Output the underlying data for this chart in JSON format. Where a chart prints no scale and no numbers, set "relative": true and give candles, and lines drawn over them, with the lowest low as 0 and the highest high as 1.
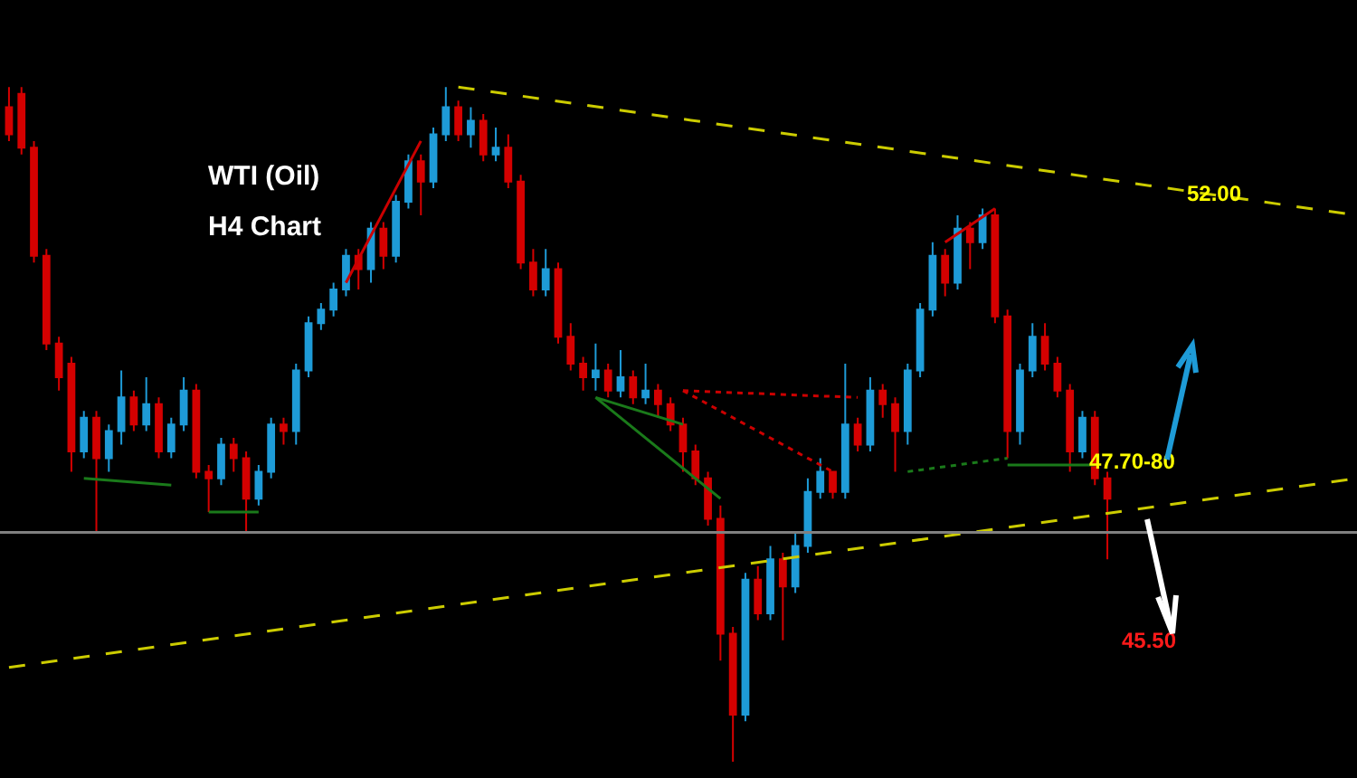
{
  "chart_data": {
    "type": "candlestick",
    "title": "WTI (Oil)",
    "subtitle": "H4 Chart",
    "relative": true,
    "categories": [
      null,
      null,
      null,
      null,
      null,
      null,
      null,
      null,
      null,
      null,
      null,
      null,
      null,
      null,
      null,
      null,
      null,
      null,
      null,
      null,
      null,
      null,
      null,
      null,
      null,
      null,
      null,
      null,
      null,
      null,
      null,
      null,
      null,
      null,
      null,
      null,
      null,
      null,
      null,
      null,
      null,
      null,
      null,
      null,
      null,
      null,
      null,
      null,
      null,
      null,
      null,
      null,
      null,
      null,
      null,
      null,
      null,
      null,
      null,
      null,
      null,
      null,
      null,
      null,
      null,
      null,
      null,
      null,
      null,
      null,
      null,
      null,
      null,
      null,
      null,
      null,
      null,
      null,
      null,
      null,
      null,
      null,
      null,
      null,
      null,
      null,
      null,
      null,
      null,
      null,
      null,
      null,
      null,
      null,
      null,
      null,
      null,
      null,
      null,
      null,
      null,
      null,
      null,
      null,
      null,
      null,
      null,
      null,
      null
    ],
    "ohlc": [
      [
        0.97,
        1.0,
        0.92,
        0.93
      ],
      [
        0.99,
        1.0,
        0.9,
        0.91
      ],
      [
        0.91,
        0.92,
        0.74,
        0.75
      ],
      [
        0.75,
        0.76,
        0.61,
        0.62
      ],
      [
        0.62,
        0.63,
        0.55,
        0.57
      ],
      [
        0.59,
        0.6,
        0.43,
        0.46
      ],
      [
        0.46,
        0.52,
        0.45,
        0.51
      ],
      [
        0.51,
        0.52,
        0.34,
        0.45
      ],
      [
        0.45,
        0.5,
        0.43,
        0.49
      ],
      [
        0.49,
        0.58,
        0.47,
        0.54
      ],
      [
        0.54,
        0.55,
        0.49,
        0.5
      ],
      [
        0.5,
        0.57,
        0.49,
        0.53
      ],
      [
        0.53,
        0.54,
        0.45,
        0.46
      ],
      [
        0.46,
        0.51,
        0.45,
        0.5
      ],
      [
        0.5,
        0.57,
        0.49,
        0.55
      ],
      [
        0.55,
        0.56,
        0.42,
        0.43
      ],
      [
        0.43,
        0.44,
        0.37,
        0.42
      ],
      [
        0.42,
        0.48,
        0.41,
        0.47
      ],
      [
        0.47,
        0.48,
        0.43,
        0.45
      ],
      [
        0.45,
        0.46,
        0.34,
        0.39
      ],
      [
        0.39,
        0.44,
        0.38,
        0.43
      ],
      [
        0.43,
        0.51,
        0.42,
        0.5
      ],
      [
        0.5,
        0.51,
        0.47,
        0.49
      ],
      [
        0.49,
        0.59,
        0.47,
        0.58
      ],
      [
        0.58,
        0.66,
        0.57,
        0.65
      ],
      [
        0.65,
        0.68,
        0.64,
        0.67
      ],
      [
        0.67,
        0.71,
        0.66,
        0.7
      ],
      [
        0.7,
        0.76,
        0.69,
        0.75
      ],
      [
        0.75,
        0.76,
        0.7,
        0.73
      ],
      [
        0.73,
        0.8,
        0.71,
        0.79
      ],
      [
        0.79,
        0.8,
        0.73,
        0.75
      ],
      [
        0.75,
        0.84,
        0.74,
        0.83
      ],
      [
        0.83,
        0.9,
        0.82,
        0.89
      ],
      [
        0.89,
        0.9,
        0.81,
        0.86
      ],
      [
        0.86,
        0.94,
        0.85,
        0.93
      ],
      [
        0.93,
        1.0,
        0.92,
        0.97
      ],
      [
        0.97,
        0.98,
        0.92,
        0.93
      ],
      [
        0.93,
        0.97,
        0.91,
        0.95
      ],
      [
        0.95,
        0.96,
        0.89,
        0.9
      ],
      [
        0.9,
        0.94,
        0.89,
        0.91
      ],
      [
        0.91,
        0.93,
        0.85,
        0.86
      ],
      [
        0.86,
        0.87,
        0.73,
        0.74
      ],
      [
        0.74,
        0.76,
        0.69,
        0.7
      ],
      [
        0.7,
        0.76,
        0.69,
        0.73
      ],
      [
        0.73,
        0.74,
        0.62,
        0.63
      ],
      [
        0.63,
        0.65,
        0.58,
        0.59
      ],
      [
        0.59,
        0.6,
        0.55,
        0.57
      ],
      [
        0.57,
        0.62,
        0.55,
        0.58
      ],
      [
        0.58,
        0.59,
        0.54,
        0.55
      ],
      [
        0.55,
        0.61,
        0.54,
        0.57
      ],
      [
        0.57,
        0.58,
        0.53,
        0.54
      ],
      [
        0.54,
        0.59,
        0.53,
        0.55
      ],
      [
        0.55,
        0.56,
        0.51,
        0.53
      ],
      [
        0.53,
        0.54,
        0.49,
        0.5
      ],
      [
        0.5,
        0.51,
        0.43,
        0.46
      ],
      [
        0.46,
        0.47,
        0.41,
        0.42
      ],
      [
        0.42,
        0.43,
        0.35,
        0.36
      ],
      [
        0.36,
        0.38,
        0.15,
        0.19
      ],
      [
        0.19,
        0.2,
        0.0,
        0.07
      ],
      [
        0.07,
        0.28,
        0.06,
        0.27
      ],
      [
        0.27,
        0.29,
        0.21,
        0.22
      ],
      [
        0.22,
        0.32,
        0.21,
        0.3
      ],
      [
        0.3,
        0.31,
        0.18,
        0.26
      ],
      [
        0.26,
        0.34,
        0.25,
        0.32
      ],
      [
        0.32,
        0.42,
        0.31,
        0.4
      ],
      [
        0.4,
        0.45,
        0.39,
        0.43
      ],
      [
        0.43,
        0.43,
        0.39,
        0.4
      ],
      [
        0.4,
        0.59,
        0.39,
        0.5
      ],
      [
        0.5,
        0.51,
        0.46,
        0.47
      ],
      [
        0.47,
        0.57,
        0.46,
        0.55
      ],
      [
        0.55,
        0.56,
        0.51,
        0.53
      ],
      [
        0.53,
        0.54,
        0.43,
        0.49
      ],
      [
        0.49,
        0.59,
        0.47,
        0.58
      ],
      [
        0.58,
        0.68,
        0.57,
        0.67
      ],
      [
        0.67,
        0.77,
        0.66,
        0.75
      ],
      [
        0.75,
        0.76,
        0.69,
        0.71
      ],
      [
        0.71,
        0.81,
        0.7,
        0.79
      ],
      [
        0.79,
        0.8,
        0.73,
        0.77
      ],
      [
        0.77,
        0.82,
        0.76,
        0.81
      ],
      [
        0.81,
        0.82,
        0.65,
        0.66
      ],
      [
        0.66,
        0.67,
        0.45,
        0.49
      ],
      [
        0.49,
        0.59,
        0.47,
        0.58
      ],
      [
        0.58,
        0.65,
        0.57,
        0.63
      ],
      [
        0.63,
        0.65,
        0.58,
        0.59
      ],
      [
        0.59,
        0.6,
        0.54,
        0.55
      ],
      [
        0.55,
        0.56,
        0.43,
        0.46
      ],
      [
        0.46,
        0.52,
        0.45,
        0.51
      ],
      [
        0.51,
        0.52,
        0.41,
        0.42
      ],
      [
        0.42,
        0.43,
        0.3,
        0.39
      ],
      null,
      null,
      null,
      null,
      null,
      null,
      null,
      null,
      null,
      null,
      null,
      null,
      null,
      null,
      null,
      null,
      null,
      null,
      null,
      null
    ],
    "colors": [
      "#d40000",
      "#d40000",
      "#d40000",
      "#d40000",
      "#d40000",
      "#d40000",
      "#1e9bd7",
      "#d40000",
      "#1e9bd7",
      "#1e9bd7",
      "#d40000",
      "#1e9bd7",
      "#d40000",
      "#1e9bd7",
      "#1e9bd7",
      "#d40000",
      "#d40000",
      "#1e9bd7",
      "#d40000",
      "#d40000",
      "#1e9bd7",
      "#1e9bd7",
      "#d40000",
      "#1e9bd7",
      "#1e9bd7",
      "#1e9bd7",
      "#1e9bd7",
      "#1e9bd7",
      "#d40000",
      "#1e9bd7",
      "#d40000",
      "#1e9bd7",
      "#1e9bd7",
      "#d40000",
      "#1e9bd7",
      "#1e9bd7",
      "#d40000",
      "#1e9bd7",
      "#d40000",
      "#1e9bd7",
      "#d40000",
      "#d40000",
      "#d40000",
      "#1e9bd7",
      "#d40000",
      "#d40000",
      "#d40000",
      "#1e9bd7",
      "#d40000",
      "#1e9bd7",
      "#d40000",
      "#1e9bd7",
      "#d40000",
      "#d40000",
      "#d40000",
      "#d40000",
      "#d40000",
      "#d40000",
      "#d40000",
      "#1e9bd7",
      "#d40000",
      "#1e9bd7",
      "#d40000",
      "#1e9bd7",
      "#1e9bd7",
      "#1e9bd7",
      "#d40000",
      "#1e9bd7",
      "#d40000",
      "#1e9bd7",
      "#d40000",
      "#d40000",
      "#1e9bd7",
      "#1e9bd7",
      "#1e9bd7",
      "#d40000",
      "#1e9bd7",
      "#d40000",
      "#1e9bd7",
      "#d40000",
      "#d40000",
      "#1e9bd7",
      "#1e9bd7",
      "#d40000",
      "#d40000",
      "#d40000",
      "#1e9bd7",
      "#d40000",
      "#d40000",
      null,
      null,
      null,
      null,
      null,
      null,
      null,
      null,
      null,
      null,
      null,
      null,
      null,
      null,
      null,
      null,
      null,
      null,
      null,
      null
    ],
    "series": [
      {
        "type": "line",
        "color": "#cccc00",
        "line_style": "dashed",
        "values": [
          null,
          null,
          null,
          null,
          null,
          null,
          null,
          null,
          null,
          null,
          null,
          null,
          null,
          null,
          null,
          null,
          null,
          null,
          null,
          null,
          null,
          null,
          null,
          null,
          null,
          null,
          null,
          null,
          null,
          null,
          null,
          null,
          null,
          null,
          null,
          null,
          1.0,
          null,
          null,
          null,
          null,
          null,
          null,
          null,
          null,
          null,
          null,
          null,
          null,
          null,
          null,
          null,
          null,
          null,
          null,
          null,
          null,
          null,
          null,
          null,
          null,
          null,
          null,
          null,
          null,
          null,
          null,
          null,
          null,
          null,
          null,
          null,
          null,
          null,
          null,
          null,
          null,
          null,
          null,
          null,
          null,
          null,
          null,
          null,
          null,
          null,
          null,
          null,
          null,
          null,
          null,
          null,
          null,
          null,
          null,
          null,
          null,
          null,
          null,
          null,
          null,
          null,
          null,
          null,
          null,
          null,
          null,
          null,
          0.81
        ]
      },
      {
        "type": "line",
        "color": "#cccc00",
        "line_style": "dashed",
        "values": [
          0.14,
          null,
          null,
          null,
          null,
          null,
          null,
          null,
          null,
          null,
          null,
          null,
          null,
          null,
          null,
          null,
          null,
          null,
          null,
          null,
          null,
          null,
          null,
          null,
          null,
          null,
          null,
          null,
          null,
          null,
          null,
          null,
          null,
          null,
          null,
          null,
          null,
          null,
          null,
          null,
          null,
          null,
          null,
          null,
          null,
          null,
          null,
          null,
          null,
          null,
          null,
          null,
          null,
          null,
          null,
          null,
          null,
          null,
          null,
          null,
          null,
          null,
          null,
          null,
          null,
          null,
          null,
          null,
          null,
          null,
          null,
          null,
          null,
          null,
          null,
          null,
          null,
          null,
          null,
          null,
          null,
          null,
          null,
          null,
          null,
          null,
          null,
          null,
          null,
          null,
          null,
          null,
          null,
          null,
          null,
          null,
          null,
          null,
          null,
          null,
          null,
          null,
          null,
          null,
          null,
          null,
          null,
          null,
          0.42
        ]
      },
      {
        "type": "line",
        "color": "#1a7a1a",
        "line_style": "solid",
        "values": [
          null,
          null,
          null,
          null,
          null,
          null,
          0.42,
          null,
          null,
          null,
          null,
          null,
          null,
          0.41,
          null,
          null,
          null,
          null,
          null,
          null,
          null,
          null,
          null,
          null,
          null,
          null,
          null,
          null,
          null,
          null,
          null,
          null,
          null,
          null,
          null,
          null,
          null,
          null,
          null,
          null,
          null,
          null,
          null,
          null,
          null,
          null,
          null,
          null,
          null,
          null,
          null,
          null,
          null,
          null,
          null,
          null,
          null,
          null,
          null,
          null,
          null,
          null,
          null,
          null,
          null,
          null,
          null,
          null,
          null,
          null,
          null,
          null,
          null,
          null,
          null,
          null,
          null,
          null,
          null,
          null,
          null,
          null,
          null,
          null,
          null,
          null,
          null,
          null,
          null,
          null,
          null,
          null,
          null,
          null,
          null,
          null,
          null,
          null,
          null,
          null,
          null,
          null,
          null,
          null,
          null,
          null,
          null,
          null,
          null
        ]
      },
      {
        "type": "line",
        "color": "#1a7a1a",
        "line_style": "solid",
        "values": [
          null,
          null,
          null,
          null,
          null,
          null,
          null,
          null,
          null,
          null,
          null,
          null,
          null,
          null,
          null,
          null,
          0.37,
          null,
          null,
          null,
          0.37,
          null,
          null,
          null,
          null,
          null,
          null,
          null,
          null,
          null,
          null,
          null,
          null,
          null,
          null,
          null,
          null,
          null,
          null,
          null,
          null,
          null,
          null,
          null,
          null,
          null,
          null,
          null,
          null,
          null,
          null,
          null,
          null,
          null,
          null,
          null,
          null,
          null,
          null,
          null,
          null,
          null,
          null,
          null,
          null,
          null,
          null,
          null,
          null,
          null,
          null,
          null,
          null,
          null,
          null,
          null,
          null,
          null,
          null,
          null,
          null,
          null,
          null,
          null,
          null,
          null,
          null,
          null,
          null,
          null,
          null,
          null,
          null,
          null,
          null,
          null,
          null,
          null,
          null,
          null,
          null,
          null,
          null,
          null,
          null,
          null,
          null,
          null,
          null
        ]
      },
      {
        "type": "line",
        "color": "#cc0000",
        "line_style": "solid",
        "values": [
          null,
          null,
          null,
          null,
          null,
          null,
          null,
          null,
          null,
          null,
          null,
          null,
          null,
          null,
          null,
          null,
          null,
          null,
          null,
          null,
          null,
          null,
          null,
          null,
          null,
          null,
          null,
          0.71,
          null,
          null,
          null,
          null,
          null,
          0.92,
          null,
          null,
          null,
          null,
          null,
          null,
          null,
          null,
          null,
          null,
          null,
          null,
          null,
          null,
          null,
          null,
          null,
          null,
          null,
          null,
          null,
          null,
          null,
          null,
          null,
          null,
          null,
          null,
          null,
          null,
          null,
          null,
          null,
          null,
          null,
          null,
          null,
          null,
          null,
          null,
          null,
          null,
          null,
          null,
          null,
          null,
          null,
          null,
          null,
          null,
          null,
          null,
          null,
          null,
          null,
          null,
          null,
          null,
          null,
          null,
          null,
          null,
          null,
          null,
          null,
          null,
          null,
          null,
          null,
          null,
          null,
          null,
          null,
          null,
          null
        ]
      },
      {
        "type": "line",
        "color": "#1a7a1a",
        "line_style": "solid",
        "values": [
          null,
          null,
          null,
          null,
          null,
          null,
          null,
          null,
          null,
          null,
          null,
          null,
          null,
          null,
          null,
          null,
          null,
          null,
          null,
          null,
          null,
          null,
          null,
          null,
          null,
          null,
          null,
          null,
          null,
          null,
          null,
          null,
          null,
          null,
          null,
          null,
          null,
          null,
          null,
          null,
          null,
          null,
          null,
          null,
          null,
          null,
          null,
          0.54,
          null,
          null,
          null,
          null,
          null,
          null,
          0.5,
          null,
          null,
          null,
          null,
          null,
          null,
          null,
          null,
          null,
          null,
          null,
          null,
          null,
          null,
          null,
          null,
          null,
          null,
          null,
          null,
          null,
          null,
          null,
          null,
          null,
          null,
          null,
          null,
          null,
          null,
          null,
          null,
          null,
          null,
          null,
          null,
          null,
          null,
          null,
          null,
          null,
          null,
          null,
          null,
          null,
          null,
          null,
          null,
          null,
          null,
          null,
          null,
          null,
          null
        ]
      },
      {
        "type": "line",
        "color": "#1a7a1a",
        "line_style": "solid",
        "values": [
          null,
          null,
          null,
          null,
          null,
          null,
          null,
          null,
          null,
          null,
          null,
          null,
          null,
          null,
          null,
          null,
          null,
          null,
          null,
          null,
          null,
          null,
          null,
          null,
          null,
          null,
          null,
          null,
          null,
          null,
          null,
          null,
          null,
          null,
          null,
          null,
          null,
          null,
          null,
          null,
          null,
          null,
          null,
          null,
          null,
          null,
          null,
          0.54,
          null,
          null,
          null,
          null,
          null,
          null,
          null,
          null,
          null,
          0.39,
          null,
          null,
          null,
          null,
          null,
          null,
          null,
          null,
          null,
          null,
          null,
          null,
          null,
          null,
          null,
          null,
          null,
          null,
          null,
          null,
          null,
          null,
          null,
          null,
          null,
          null,
          null,
          null,
          null,
          null,
          null,
          null,
          null,
          null,
          null,
          null,
          null,
          null,
          null,
          null,
          null,
          null,
          null,
          null,
          null,
          null,
          null,
          null,
          null,
          null,
          null
        ]
      },
      {
        "type": "line",
        "color": "#cc0000",
        "line_style": "dotted",
        "values": [
          null,
          null,
          null,
          null,
          null,
          null,
          null,
          null,
          null,
          null,
          null,
          null,
          null,
          null,
          null,
          null,
          null,
          null,
          null,
          null,
          null,
          null,
          null,
          null,
          null,
          null,
          null,
          null,
          null,
          null,
          null,
          null,
          null,
          null,
          null,
          null,
          null,
          null,
          null,
          null,
          null,
          null,
          null,
          null,
          null,
          null,
          null,
          null,
          null,
          null,
          null,
          null,
          null,
          null,
          0.55,
          null,
          null,
          null,
          null,
          null,
          null,
          null,
          null,
          null,
          null,
          null,
          null,
          null,
          0.54,
          null,
          null,
          null,
          null,
          null,
          null,
          null,
          null,
          null,
          null,
          null,
          null,
          null,
          null,
          null,
          null,
          null,
          null,
          null,
          null,
          null,
          null,
          null,
          null,
          null,
          null,
          null,
          null,
          null,
          null,
          null,
          null,
          null,
          null,
          null,
          null,
          null,
          null,
          null,
          null
        ]
      },
      {
        "type": "line",
        "color": "#cc0000",
        "line_style": "dotted",
        "values": [
          null,
          null,
          null,
          null,
          null,
          null,
          null,
          null,
          null,
          null,
          null,
          null,
          null,
          null,
          null,
          null,
          null,
          null,
          null,
          null,
          null,
          null,
          null,
          null,
          null,
          null,
          null,
          null,
          null,
          null,
          null,
          null,
          null,
          null,
          null,
          null,
          null,
          null,
          null,
          null,
          null,
          null,
          null,
          null,
          null,
          null,
          null,
          null,
          null,
          null,
          null,
          null,
          null,
          null,
          0.55,
          null,
          null,
          null,
          null,
          null,
          null,
          null,
          null,
          null,
          null,
          null,
          0.43,
          null,
          null,
          null,
          null,
          null,
          null,
          null,
          null,
          null,
          null,
          null,
          null,
          null,
          null,
          null,
          null,
          null,
          null,
          null,
          null,
          null,
          null,
          null,
          null,
          null,
          null,
          null,
          null,
          null,
          null,
          null,
          null,
          null,
          null,
          null,
          null,
          null,
          null,
          null,
          null,
          null,
          null
        ]
      },
      {
        "type": "line",
        "color": "#1a7a1a",
        "line_style": "dotted",
        "values": [
          null,
          null,
          null,
          null,
          null,
          null,
          null,
          null,
          null,
          null,
          null,
          null,
          null,
          null,
          null,
          null,
          null,
          null,
          null,
          null,
          null,
          null,
          null,
          null,
          null,
          null,
          null,
          null,
          null,
          null,
          null,
          null,
          null,
          null,
          null,
          null,
          null,
          null,
          null,
          null,
          null,
          null,
          null,
          null,
          null,
          null,
          null,
          null,
          null,
          null,
          null,
          null,
          null,
          null,
          null,
          null,
          null,
          null,
          null,
          null,
          null,
          null,
          null,
          null,
          null,
          null,
          null,
          null,
          null,
          null,
          null,
          null,
          0.43,
          null,
          null,
          null,
          null,
          null,
          null,
          null,
          0.45,
          null,
          null,
          null,
          null,
          null,
          null,
          null,
          null,
          null,
          null,
          null,
          null,
          null,
          null,
          null,
          null,
          null,
          null,
          null,
          null,
          null,
          null,
          null,
          null,
          null,
          null,
          null,
          null
        ]
      },
      {
        "type": "line",
        "color": "#1a7a1a",
        "line_style": "solid",
        "values": [
          null,
          null,
          null,
          null,
          null,
          null,
          null,
          null,
          null,
          null,
          null,
          null,
          null,
          null,
          null,
          null,
          null,
          null,
          null,
          null,
          null,
          null,
          null,
          null,
          null,
          null,
          null,
          null,
          null,
          null,
          null,
          null,
          null,
          null,
          null,
          null,
          null,
          null,
          null,
          null,
          null,
          null,
          null,
          null,
          null,
          null,
          null,
          null,
          null,
          null,
          null,
          null,
          null,
          null,
          null,
          null,
          null,
          null,
          null,
          null,
          null,
          null,
          null,
          null,
          null,
          null,
          null,
          null,
          null,
          null,
          null,
          null,
          null,
          null,
          null,
          null,
          null,
          null,
          null,
          null,
          0.44,
          null,
          null,
          null,
          null,
          null,
          null,
          0.44,
          null,
          null,
          null,
          null,
          null,
          null,
          null,
          null,
          null,
          null,
          null,
          null,
          null,
          null,
          null,
          null,
          null,
          null,
          null,
          null,
          null
        ]
      },
      {
        "type": "line",
        "color": "#cc0000",
        "line_style": "solid",
        "values": [
          null,
          null,
          null,
          null,
          null,
          null,
          null,
          null,
          null,
          null,
          null,
          null,
          null,
          null,
          null,
          null,
          null,
          null,
          null,
          null,
          null,
          null,
          null,
          null,
          null,
          null,
          null,
          null,
          null,
          null,
          null,
          null,
          null,
          null,
          null,
          null,
          null,
          null,
          null,
          null,
          null,
          null,
          null,
          null,
          null,
          null,
          null,
          null,
          null,
          null,
          null,
          null,
          null,
          null,
          null,
          null,
          null,
          null,
          null,
          null,
          null,
          null,
          null,
          null,
          null,
          null,
          null,
          null,
          null,
          null,
          null,
          null,
          null,
          null,
          null,
          0.77,
          null,
          null,
          null,
          0.82,
          null,
          null,
          null,
          null,
          null,
          null,
          null,
          null,
          null,
          null,
          null,
          null,
          null,
          null,
          null,
          null,
          null,
          null,
          null,
          null,
          null,
          null,
          null,
          null,
          null,
          null,
          null,
          null,
          null
        ]
      }
    ],
    "ref_lines": [
      {
        "axis": "y",
        "value": 0.34,
        "color": "#808080"
      }
    ],
    "annotations": [
      "52.00",
      "47.70-80",
      "45.50"
    ]
  }
}
